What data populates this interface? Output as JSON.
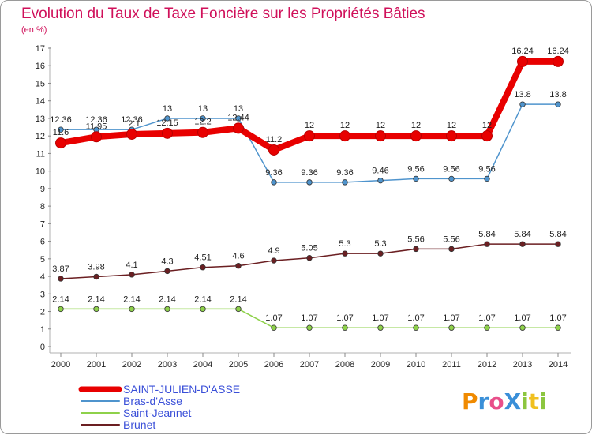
{
  "chart_data": {
    "type": "line",
    "title": "Evolution du Taux de Taxe Foncière sur les Propriétés Bâties",
    "subtitle": "(en %)",
    "xlabel": "",
    "ylabel": "",
    "ylim": [
      0,
      17
    ],
    "yticks": [
      "0",
      "1",
      "2",
      "3",
      "4",
      "5",
      "6",
      "7",
      "8",
      "9",
      "10",
      "11",
      "12",
      "13",
      "14",
      "15",
      "16",
      "17"
    ],
    "categories": [
      "2000",
      "2001",
      "2002",
      "2003",
      "2004",
      "2005",
      "2006",
      "2007",
      "2008",
      "2009",
      "2010",
      "2011",
      "2012",
      "2013",
      "2014"
    ],
    "series": [
      {
        "name": "SAINT-JULIEN-D'ASSE",
        "color": "#e80000",
        "values": [
          11.6,
          11.95,
          12.1,
          12.15,
          12.2,
          12.44,
          11.2,
          12,
          12,
          12,
          12,
          12,
          12,
          16.24,
          16.24
        ],
        "labels": [
          "11.6",
          "11.95",
          "12.1",
          "12.15",
          "12.2",
          "12.44",
          "11.2",
          "12",
          "12",
          "12",
          "12",
          "12",
          "12",
          "16.24",
          "16.24"
        ]
      },
      {
        "name": "Bras-d'Asse",
        "color": "#4f94cd",
        "values": [
          12.36,
          12.36,
          12.36,
          13,
          13,
          13,
          9.36,
          9.36,
          9.36,
          9.46,
          9.56,
          9.56,
          9.56,
          13.8,
          13.8
        ],
        "labels": [
          "12.36",
          "12.36",
          "12.36",
          "13",
          "13",
          "13",
          "9.36",
          "9.36",
          "9.36",
          "9.46",
          "9.56",
          "9.56",
          "9.56",
          "13.8",
          "13.8"
        ]
      },
      {
        "name": "Saint-Jeannet",
        "color": "#8ed14a",
        "values": [
          2.14,
          2.14,
          2.14,
          2.14,
          2.14,
          2.14,
          1.07,
          1.07,
          1.07,
          1.07,
          1.07,
          1.07,
          1.07,
          1.07,
          1.07
        ],
        "labels": [
          "2.14",
          "2.14",
          "2.14",
          "2.14",
          "2.14",
          "2.14",
          "1.07",
          "1.07",
          "1.07",
          "1.07",
          "1.07",
          "1.07",
          "1.07",
          "1.07",
          "1.07"
        ]
      },
      {
        "name": "Brunet",
        "color": "#6b1f22",
        "values": [
          3.87,
          3.98,
          4.1,
          4.3,
          4.51,
          4.6,
          4.9,
          5.05,
          5.3,
          5.3,
          5.56,
          5.56,
          5.84,
          5.84,
          5.84
        ],
        "labels": [
          "3.87",
          "3.98",
          "4.1",
          "4.3",
          "4.51",
          "4.6",
          "4.9",
          "5.05",
          "5.3",
          "5.3",
          "5.56",
          "5.56",
          "5.84",
          "5.84",
          "5.84"
        ]
      }
    ],
    "legend_position": "bottom-left",
    "grid": false
  },
  "legend_text_color": "#3a4fd8",
  "logo": {
    "text": "ProXiti",
    "letter_colors": [
      "#f08a00",
      "#3a8fd8",
      "#e84f8a",
      "#3a8fd8",
      "#8cc63f",
      "#f0c020",
      "#8cc63f"
    ]
  }
}
